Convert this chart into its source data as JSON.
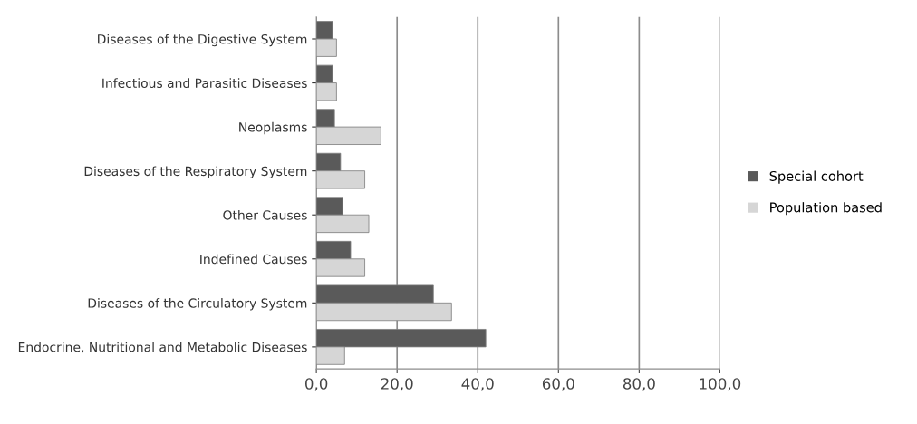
{
  "chart_data": {
    "type": "bar",
    "orientation": "horizontal",
    "categories": [
      "Diseases of the Digestive System",
      "Infectious and Parasitic Diseases",
      "Neoplasms",
      "Diseases of the Respiratory System",
      "Other Causes",
      "Indefined Causes",
      "Diseases of the Circulatory System",
      "Endocrine, Nutritional and Metabolic Diseases"
    ],
    "series": [
      {
        "name": "Special cohort",
        "color": "#5a5a5a",
        "values": [
          4.0,
          4.0,
          4.5,
          6.0,
          6.5,
          8.5,
          29.0,
          42.0
        ]
      },
      {
        "name": "Population based",
        "color": "#d6d6d6",
        "values": [
          5.0,
          5.0,
          16.0,
          12.0,
          13.0,
          12.0,
          33.5,
          7.0
        ]
      }
    ],
    "xlim": [
      0,
      100
    ],
    "xticks": [
      {
        "value": 0,
        "label": "0,0"
      },
      {
        "value": 20,
        "label": "20,0"
      },
      {
        "value": 40,
        "label": "40,0"
      },
      {
        "value": 60,
        "label": "60,0"
      },
      {
        "value": 80,
        "label": "80,0"
      },
      {
        "value": 100,
        "label": "100,0"
      }
    ],
    "grid": "x",
    "legend": "right"
  }
}
